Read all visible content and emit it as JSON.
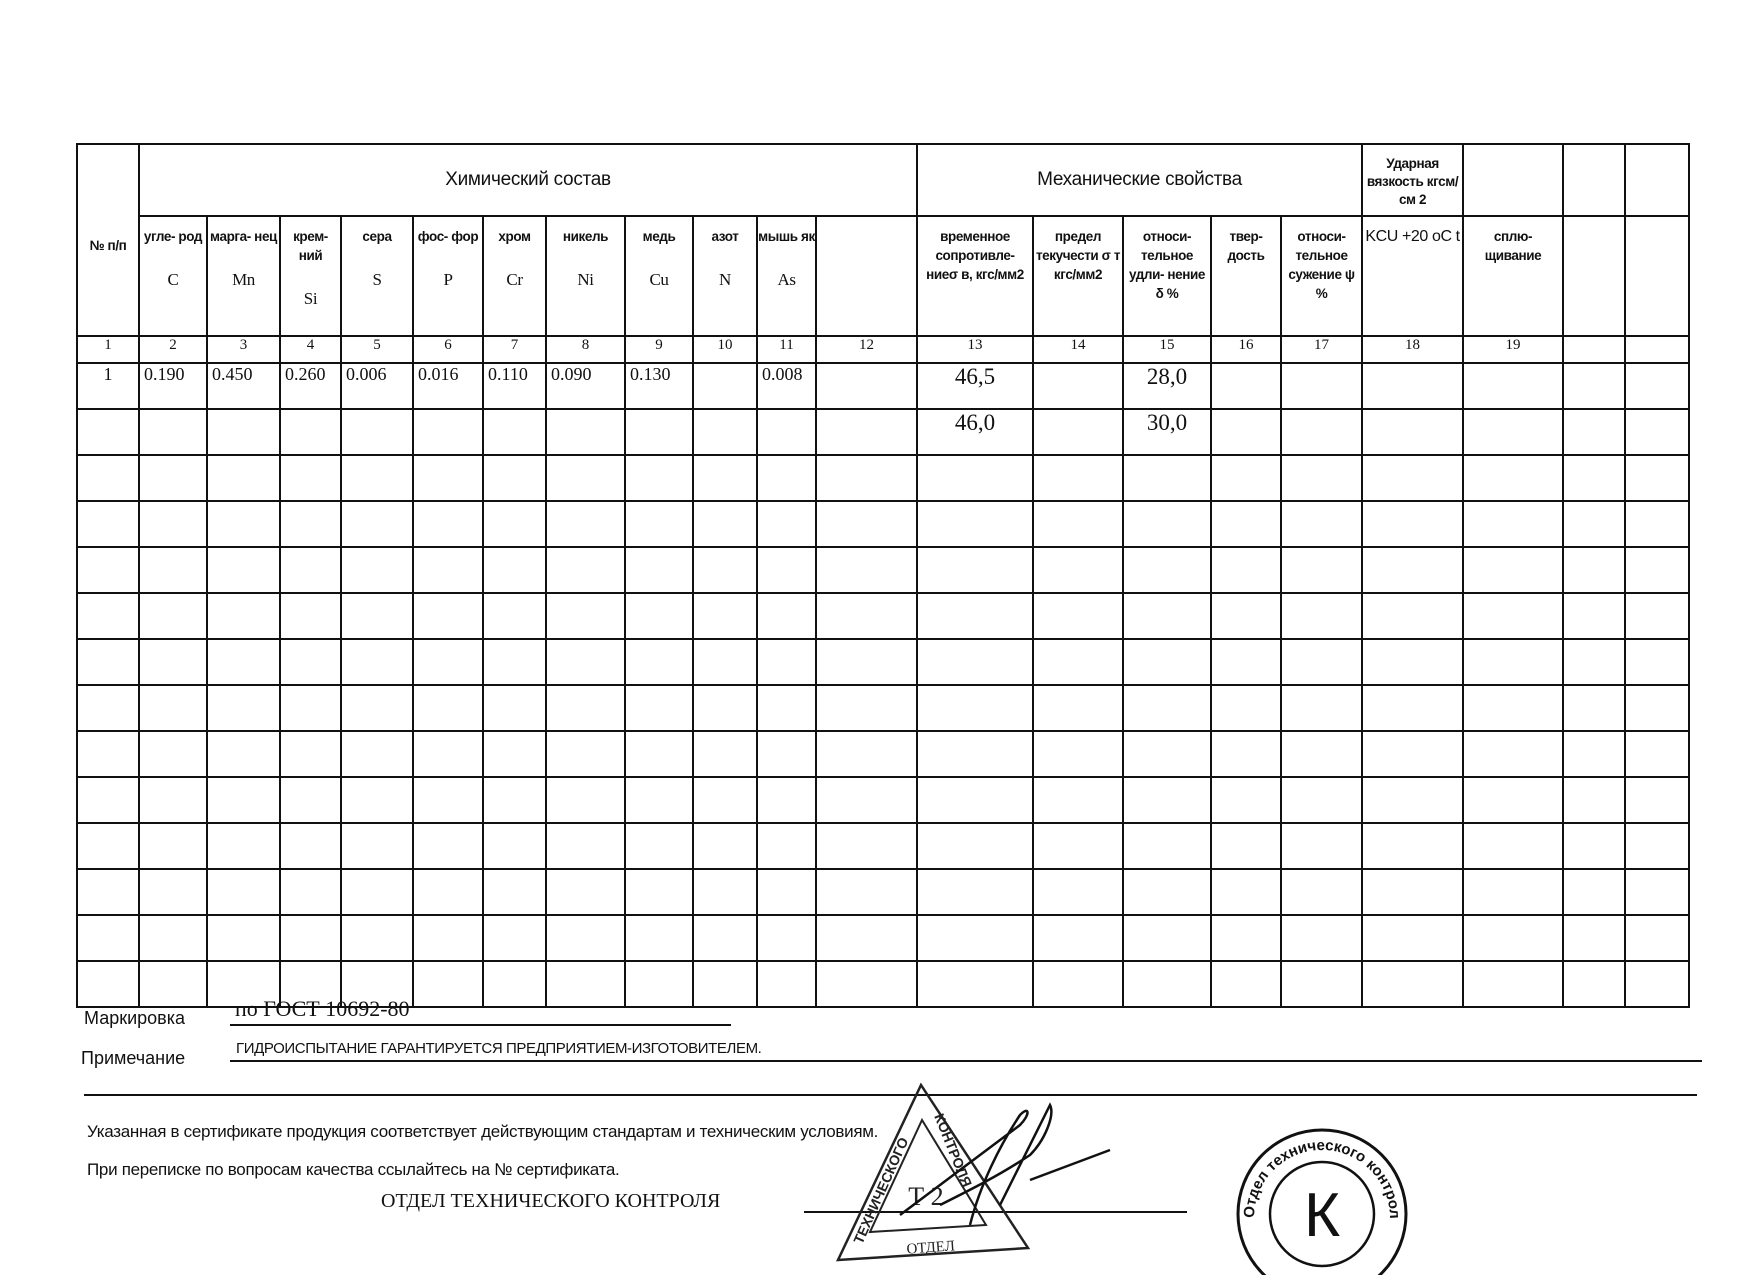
{
  "table": {
    "no_header": "№ п/п",
    "chem_group": "Химический состав",
    "mech_group": "Механические свойства",
    "impact_header": "Ударная вязкость кгсм/см 2",
    "chem_columns": [
      {
        "name": "угле- род",
        "symbol": "C"
      },
      {
        "name": "марга- нец",
        "symbol": "Mn"
      },
      {
        "name": "крем- ний",
        "symbol": "Si"
      },
      {
        "name": "сера",
        "symbol": "S"
      },
      {
        "name": "фос- фор",
        "symbol": "P"
      },
      {
        "name": "хром",
        "symbol": "Cr"
      },
      {
        "name": "никель",
        "symbol": "Ni"
      },
      {
        "name": "медь",
        "symbol": "Cu"
      },
      {
        "name": "азот",
        "symbol": "N"
      },
      {
        "name": "мышь як",
        "symbol": "As"
      },
      {
        "name": "",
        "symbol": ""
      }
    ],
    "mech_columns": [
      "временное сопротивле- ниеσ в, кгс/мм2",
      "предел текучести σ т кгс/мм2",
      "относи- тельное удли- нение δ %",
      "твер- дость",
      "относи- тельное сужение ψ %"
    ],
    "impact_sub": "KCU +20 оС t",
    "flattening": "сплю- щивание",
    "column_numbers": [
      "1",
      "2",
      "3",
      "4",
      "5",
      "6",
      "7",
      "8",
      "9",
      "10",
      "11",
      "12",
      "13",
      "14",
      "15",
      "16",
      "17",
      "18",
      "19",
      "",
      ""
    ],
    "rows": [
      [
        "1",
        "0.190",
        "0.450",
        "0.260",
        "0.006",
        "0.016",
        "0.110",
        "0.090",
        "0.130",
        "",
        "0.008",
        "",
        "46,5",
        "",
        "28,0",
        "",
        "",
        "",
        "",
        "",
        ""
      ],
      [
        "",
        "",
        "",
        "",
        "",
        "",
        "",
        "",
        "",
        "",
        "",
        "",
        "46,0",
        "",
        "30,0",
        "",
        "",
        "",
        "",
        "",
        ""
      ]
    ]
  },
  "footer": {
    "marking_label": "Маркировка",
    "marking_value": "по  ГОСТ 10692-80",
    "note_label": "Примечание",
    "note_value": "ГИДРОИСПЫТАНИЕ  ГАРАНТИРУЕТСЯ ПРЕДПРИЯТИЕМ-ИЗГОТОВИТЕЛЕМ.",
    "statement_1": "Указанная в сертификате продукция соответствует действующим стандартам  и техническим условиям.",
    "statement_2": "При переписке по вопросам качества ссылайтесь на № сертификата.",
    "department": "ОТДЕЛ ТЕХНИЧЕСКОГО КОНТРОЛЯ"
  },
  "stamps": {
    "triangle": {
      "side_left": "ТЕХНИЧЕСКОГО",
      "side_right": "КОНТРОЛЯ",
      "center": "Т 2",
      "bottom": "ОТДЕЛ"
    },
    "round": {
      "ring": "Отдел технического контроля",
      "center": "К"
    }
  }
}
